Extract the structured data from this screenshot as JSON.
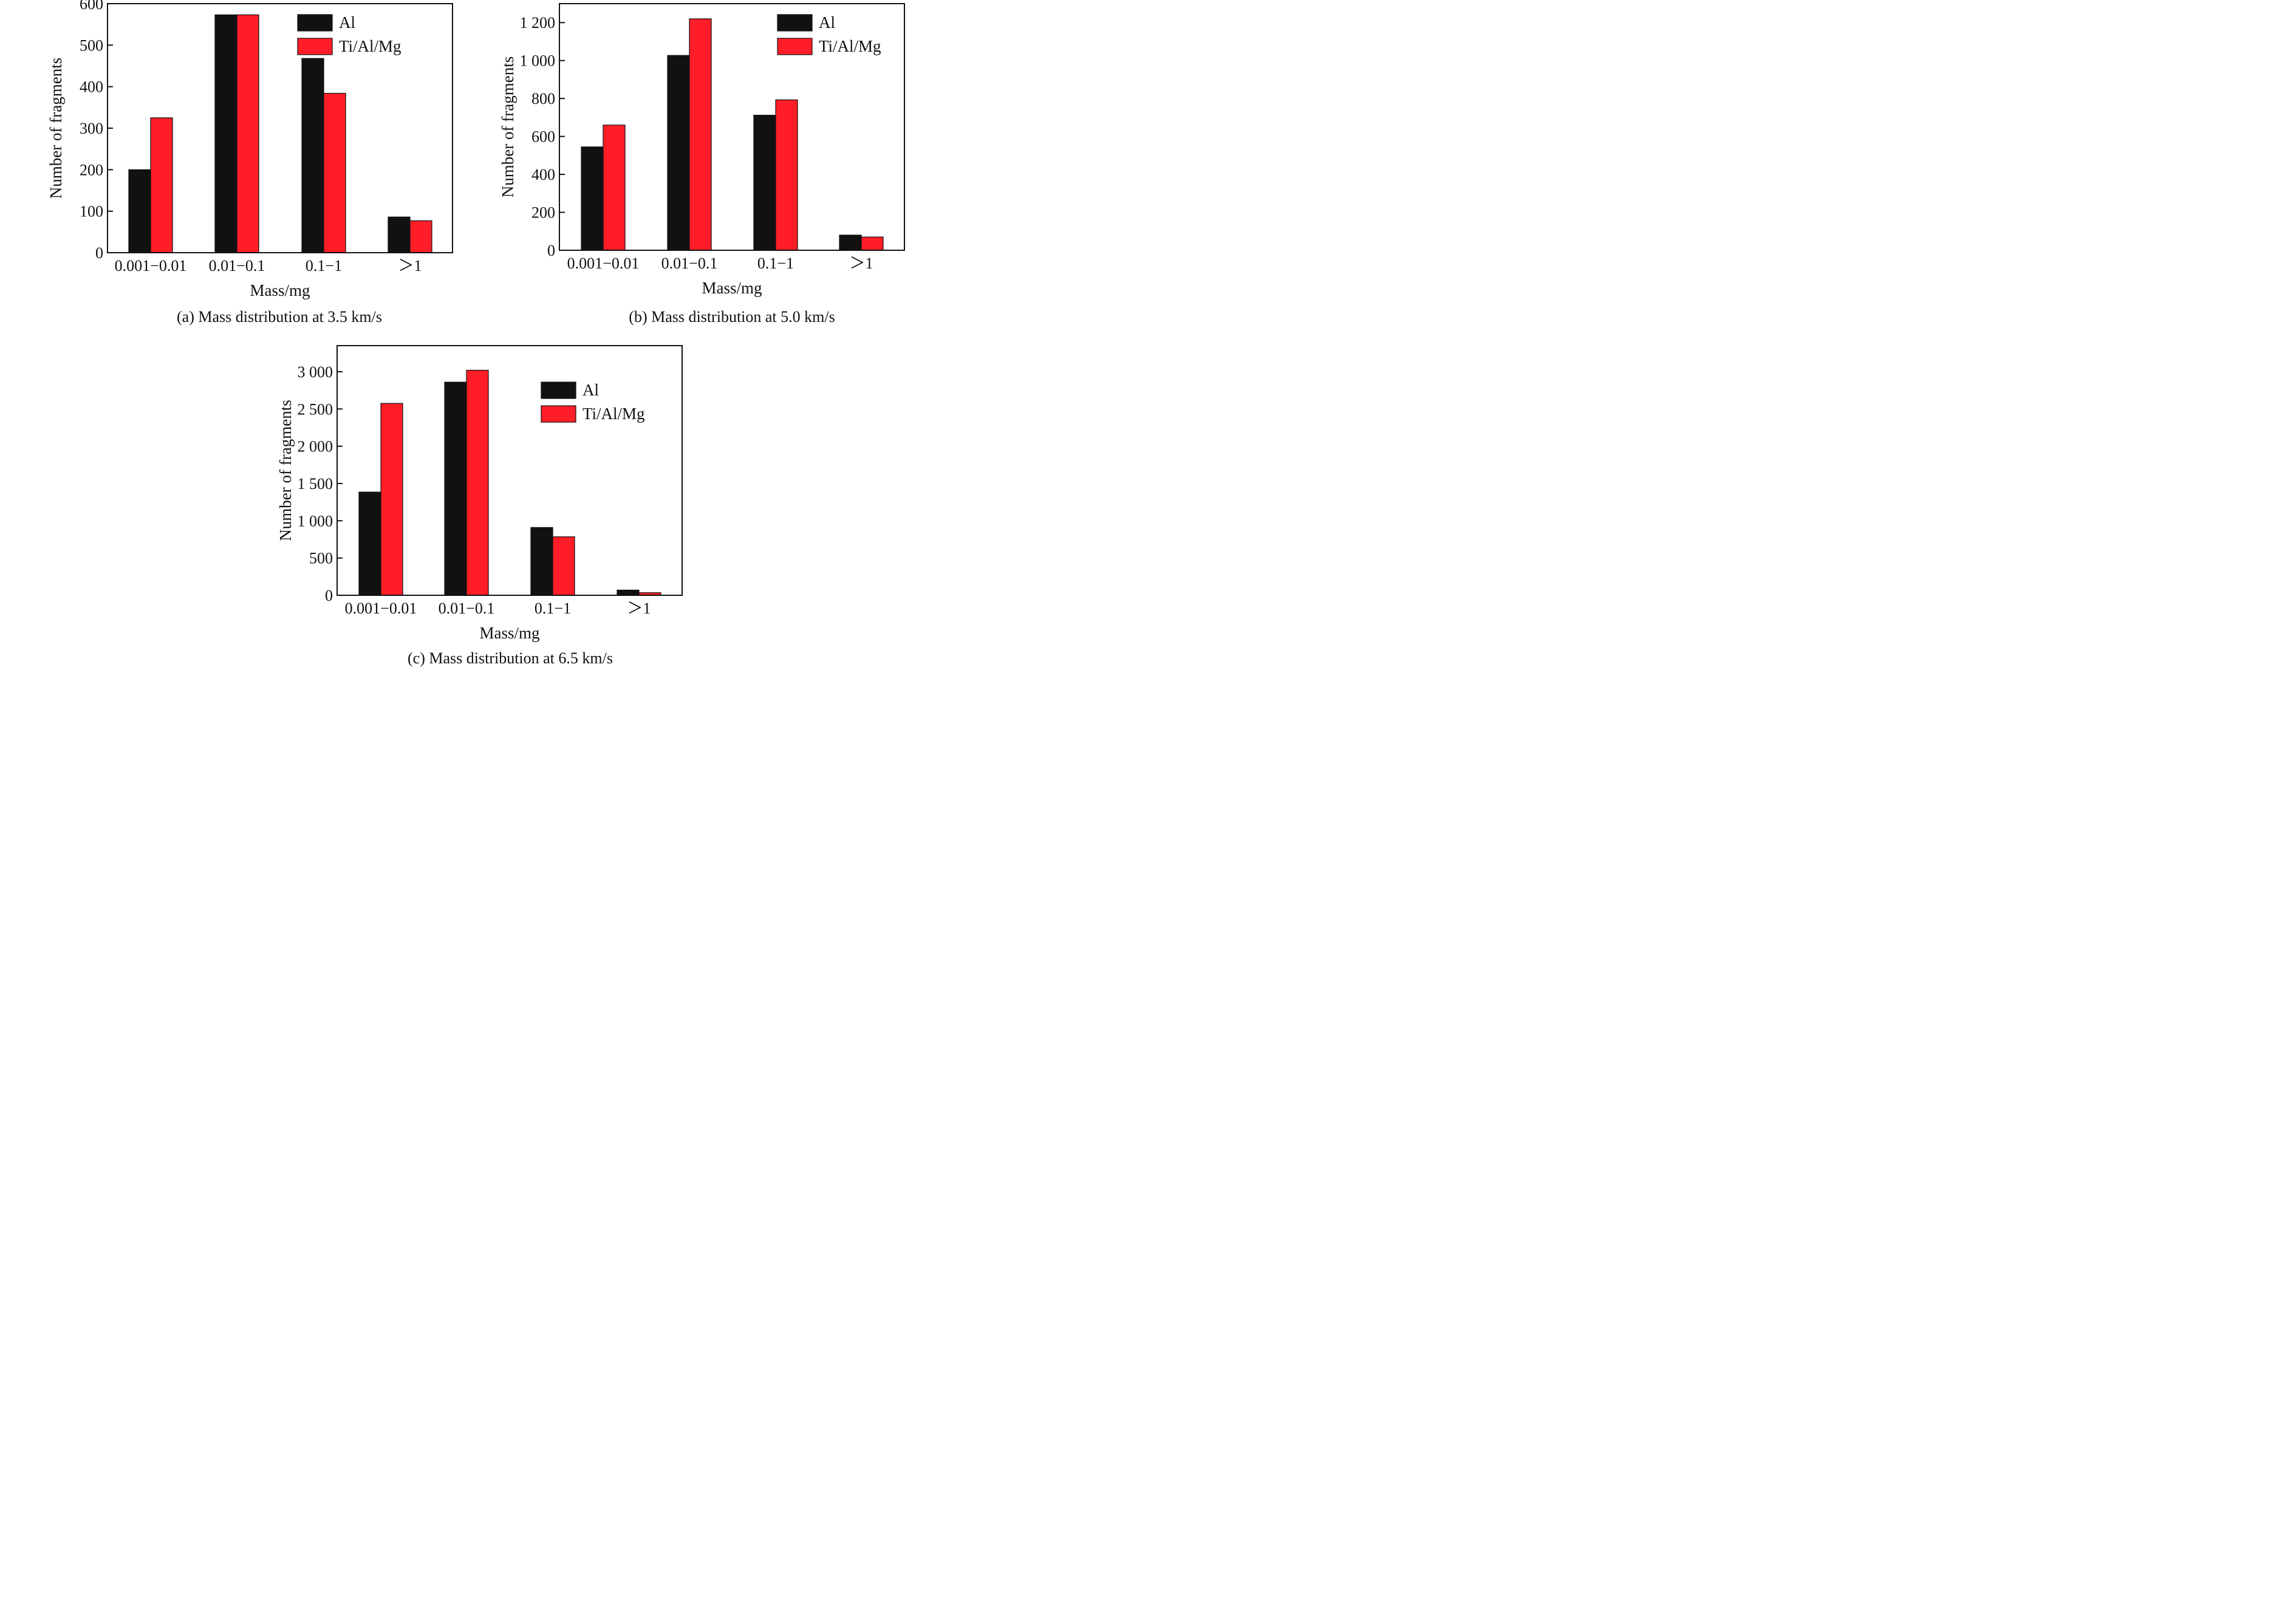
{
  "colors": {
    "Al": "#111111",
    "Ti/Al/Mg": "#ff1e28"
  },
  "chart_data": [
    {
      "type": "bar",
      "caption": "(a) Mass distribution at 3.5 km/s",
      "xlabel": "Mass/mg",
      "ylabel": "Number of fragments",
      "categories": [
        "0.001−0.01",
        "0.01−0.1",
        "0.1−1",
        "＞1"
      ],
      "ylim": [
        0,
        600
      ],
      "yticks": [
        0,
        100,
        200,
        300,
        400,
        500,
        600
      ],
      "ytick_labels": [
        "0",
        "100",
        "200",
        "300",
        "400",
        "500",
        "600"
      ],
      "legend_position": "top-right",
      "grid": false,
      "series": [
        {
          "name": "Al",
          "values": [
            200,
            573,
            468,
            86
          ]
        },
        {
          "name": "Ti/Al/Mg",
          "values": [
            325,
            573,
            384,
            77
          ]
        }
      ]
    },
    {
      "type": "bar",
      "caption": "(b) Mass distribution at 5.0 km/s",
      "xlabel": "Mass/mg",
      "ylabel": "Number of fragments",
      "categories": [
        "0.001−0.01",
        "0.01−0.1",
        "0.1−1",
        "＞1"
      ],
      "ylim": [
        0,
        1300
      ],
      "yticks": [
        0,
        200,
        400,
        600,
        800,
        1000,
        1200
      ],
      "ytick_labels": [
        "0",
        "200",
        "400",
        "600",
        "800",
        "1 000",
        "1 200"
      ],
      "legend_position": "top-right",
      "grid": false,
      "series": [
        {
          "name": "Al",
          "values": [
            545,
            1027,
            712,
            80
          ]
        },
        {
          "name": "Ti/Al/Mg",
          "values": [
            660,
            1220,
            793,
            70
          ]
        }
      ]
    },
    {
      "type": "bar",
      "caption": "(c) Mass distribution at 6.5 km/s",
      "xlabel": "Mass/mg",
      "ylabel": "Number of fragments",
      "categories": [
        "0.001−0.01",
        "0.01−0.1",
        "0.1−1",
        "＞1"
      ],
      "ylim": [
        0,
        3350
      ],
      "yticks": [
        0,
        500,
        1000,
        1500,
        2000,
        2500,
        3000
      ],
      "ytick_labels": [
        "0",
        "500",
        "1 000",
        "1 500",
        "2 000",
        "2 500",
        "3 000"
      ],
      "legend_position": "top-right",
      "grid": false,
      "series": [
        {
          "name": "Al",
          "values": [
            1385,
            2860,
            910,
            70
          ]
        },
        {
          "name": "Ti/Al/Mg",
          "values": [
            2575,
            3020,
            785,
            35
          ]
        }
      ]
    }
  ]
}
